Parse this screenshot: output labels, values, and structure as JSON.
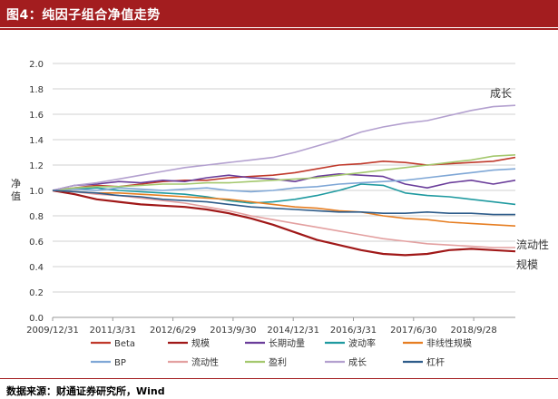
{
  "header": {
    "title": "图4：纯因子组合净值走势"
  },
  "footer": {
    "source": "数据来源：财通证券研究所，Wind"
  },
  "chart_data": {
    "type": "line",
    "ylabel": "净值",
    "ylim": [
      0.0,
      2.0
    ],
    "yticks": [
      "0.0",
      "0.2",
      "0.4",
      "0.6",
      "0.8",
      "1.0",
      "1.2",
      "1.4",
      "1.6",
      "1.8",
      "2.0"
    ],
    "xticks": [
      "2009/12/31",
      "2011/3/31",
      "2012/6/29",
      "2013/9/30",
      "2014/12/31",
      "2016/3/31",
      "2017/6/30",
      "2018/9/28"
    ],
    "grid": true,
    "legend_position": "bottom",
    "annotations": [
      {
        "text": "成长",
        "series": "成长"
      },
      {
        "text": "流动性",
        "series": "流动性"
      },
      {
        "text": "规模",
        "series": "规模"
      }
    ],
    "series": [
      {
        "name": "Beta",
        "color": "#c0392b",
        "values": [
          1.0,
          1.02,
          1.04,
          1.03,
          1.05,
          1.07,
          1.08,
          1.08,
          1.1,
          1.11,
          1.12,
          1.14,
          1.17,
          1.2,
          1.21,
          1.23,
          1.22,
          1.2,
          1.21,
          1.22,
          1.23,
          1.26
        ]
      },
      {
        "name": "规模",
        "color": "#a01818",
        "values": [
          1.0,
          0.97,
          0.93,
          0.91,
          0.89,
          0.88,
          0.87,
          0.85,
          0.82,
          0.78,
          0.73,
          0.67,
          0.61,
          0.57,
          0.53,
          0.5,
          0.49,
          0.5,
          0.53,
          0.54,
          0.53,
          0.52
        ]
      },
      {
        "name": "长期动量",
        "color": "#6a3d9a",
        "values": [
          1.0,
          1.04,
          1.05,
          1.07,
          1.06,
          1.08,
          1.07,
          1.1,
          1.12,
          1.1,
          1.09,
          1.07,
          1.11,
          1.13,
          1.12,
          1.11,
          1.05,
          1.02,
          1.06,
          1.08,
          1.05,
          1.08
        ]
      },
      {
        "name": "波动率",
        "color": "#1f9aa0",
        "values": [
          1.0,
          1.01,
          1.02,
          1.0,
          0.99,
          0.98,
          0.97,
          0.95,
          0.92,
          0.9,
          0.91,
          0.93,
          0.96,
          1.0,
          1.05,
          1.04,
          0.98,
          0.96,
          0.95,
          0.93,
          0.91,
          0.89
        ]
      },
      {
        "name": "非线性规模",
        "color": "#e67e22",
        "values": [
          1.0,
          0.99,
          0.98,
          0.98,
          0.97,
          0.96,
          0.95,
          0.94,
          0.93,
          0.91,
          0.89,
          0.87,
          0.86,
          0.84,
          0.83,
          0.8,
          0.78,
          0.77,
          0.75,
          0.74,
          0.73,
          0.72
        ]
      },
      {
        "name": "BP",
        "color": "#7fa7d6",
        "values": [
          1.0,
          1.01,
          1.0,
          1.02,
          1.01,
          1.0,
          1.01,
          1.02,
          1.0,
          0.99,
          1.0,
          1.02,
          1.03,
          1.05,
          1.06,
          1.07,
          1.08,
          1.1,
          1.12,
          1.14,
          1.16,
          1.17
        ]
      },
      {
        "name": "流动性",
        "color": "#e3a0a0",
        "values": [
          1.0,
          0.99,
          0.97,
          0.96,
          0.94,
          0.92,
          0.9,
          0.87,
          0.84,
          0.8,
          0.77,
          0.74,
          0.71,
          0.68,
          0.65,
          0.62,
          0.6,
          0.58,
          0.57,
          0.56,
          0.55,
          0.55
        ]
      },
      {
        "name": "盈利",
        "color": "#a4c86e",
        "values": [
          1.0,
          1.02,
          1.03,
          1.03,
          1.04,
          1.05,
          1.05,
          1.06,
          1.06,
          1.07,
          1.08,
          1.09,
          1.1,
          1.12,
          1.14,
          1.16,
          1.18,
          1.2,
          1.22,
          1.24,
          1.27,
          1.28
        ]
      },
      {
        "name": "成长",
        "color": "#b3a0cf",
        "values": [
          1.0,
          1.04,
          1.06,
          1.09,
          1.12,
          1.15,
          1.18,
          1.2,
          1.22,
          1.24,
          1.26,
          1.3,
          1.35,
          1.4,
          1.46,
          1.5,
          1.53,
          1.55,
          1.59,
          1.63,
          1.66,
          1.67
        ]
      },
      {
        "name": "杠杆",
        "color": "#2e5c8a",
        "values": [
          1.0,
          0.99,
          0.98,
          0.96,
          0.95,
          0.93,
          0.92,
          0.91,
          0.89,
          0.87,
          0.86,
          0.85,
          0.84,
          0.83,
          0.83,
          0.82,
          0.82,
          0.83,
          0.82,
          0.82,
          0.81,
          0.81
        ]
      }
    ]
  }
}
